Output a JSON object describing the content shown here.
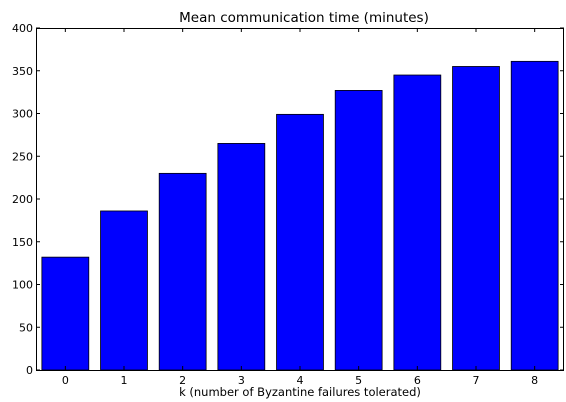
{
  "chart_data": {
    "type": "bar",
    "title": "Mean communication time (minutes)",
    "xlabel": "k (number of Byzantine failures tolerated)",
    "ylabel": "",
    "categories": [
      "0",
      "1",
      "2",
      "3",
      "4",
      "5",
      "6",
      "7",
      "8"
    ],
    "values": [
      132,
      186,
      230,
      265,
      299,
      327,
      345,
      355,
      361
    ],
    "ylim": [
      0,
      400
    ],
    "yticks": [
      "0",
      "50",
      "100",
      "150",
      "200",
      "250",
      "300",
      "350",
      "400"
    ],
    "grid": false,
    "legend": "none",
    "bar_color": "#0000ff",
    "edge_color": "#000000"
  }
}
